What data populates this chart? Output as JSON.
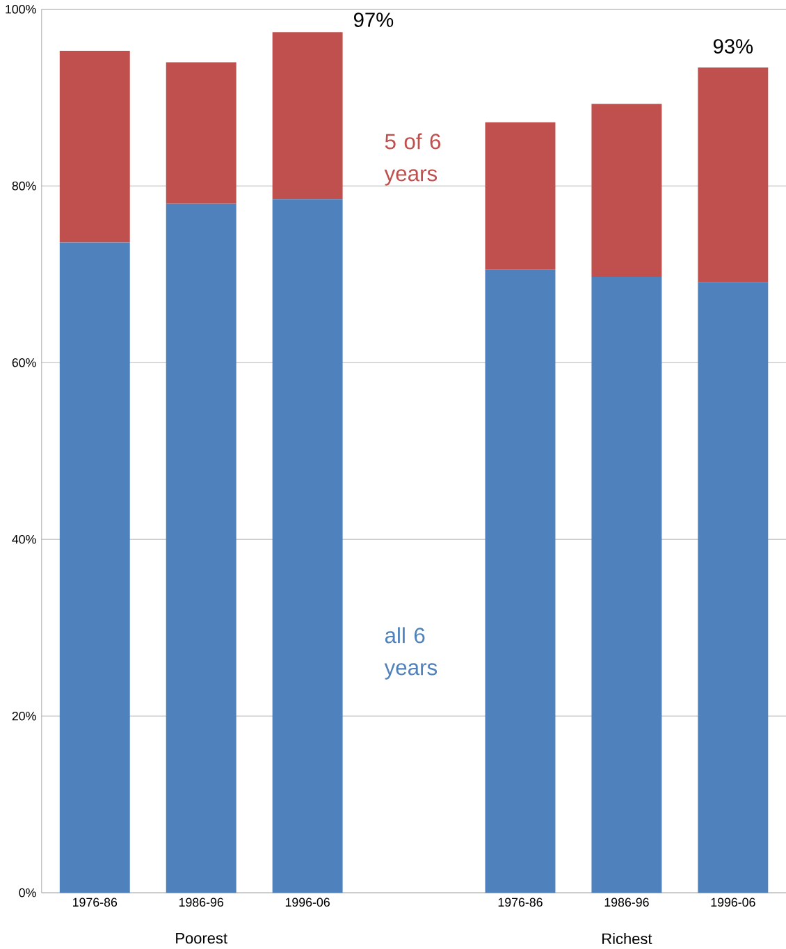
{
  "chart_data": {
    "type": "bar",
    "stacked": true,
    "categories": [
      "1976-86",
      "1986-96",
      "1996-06",
      null,
      "1976-86",
      "1986-96",
      "1996-06"
    ],
    "series": [
      {
        "name": "all 6 years",
        "color": "#4f81bd",
        "values": [
          73.6,
          78.0,
          78.5,
          null,
          70.5,
          69.7,
          69.1
        ]
      },
      {
        "name": "5 of 6 years",
        "color": "#c0504d",
        "values": [
          21.7,
          16.0,
          18.9,
          null,
          16.7,
          19.6,
          24.3
        ]
      }
    ],
    "totals": [
      null,
      null,
      "97%",
      null,
      null,
      null,
      "93%"
    ],
    "annotations": [
      "Poorest",
      "Richest"
    ],
    "ylim": [
      0,
      100
    ],
    "yticks": [
      {
        "value": 0,
        "label": "0%"
      },
      {
        "value": 20,
        "label": "20%"
      },
      {
        "value": 40,
        "label": "40%"
      },
      {
        "value": 60,
        "label": "60%"
      },
      {
        "value": 80,
        "label": "80%"
      },
      {
        "value": 100,
        "label": "100%"
      }
    ],
    "grid": "y"
  }
}
